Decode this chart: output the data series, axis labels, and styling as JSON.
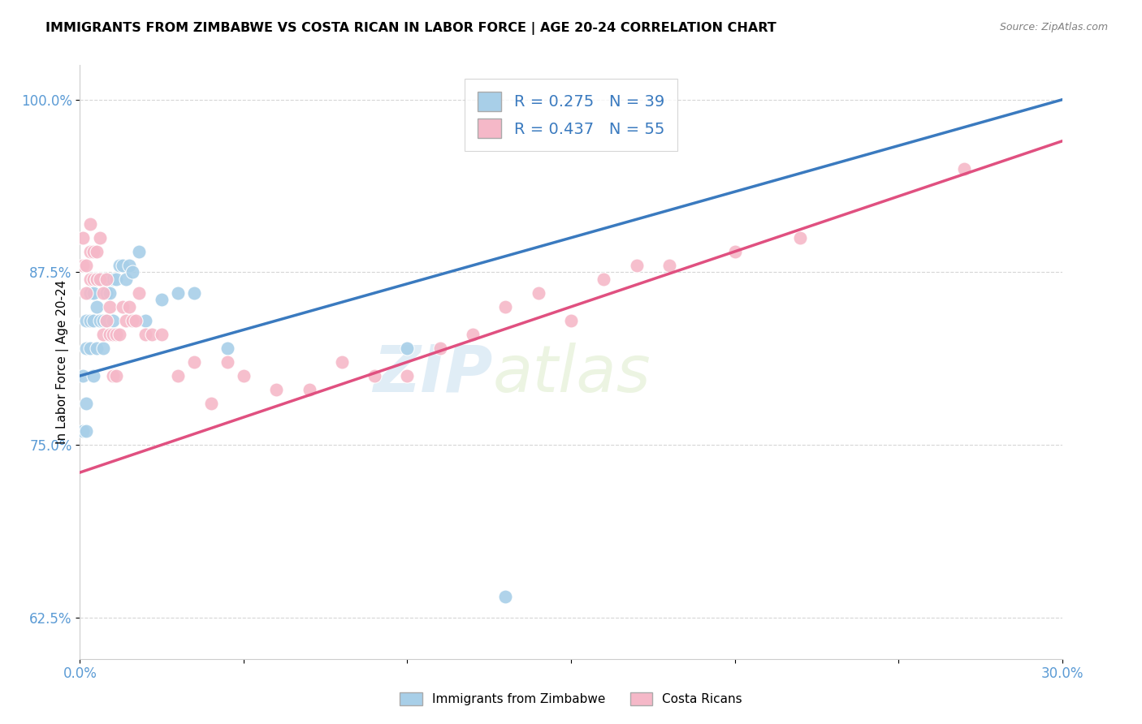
{
  "title": "IMMIGRANTS FROM ZIMBABWE VS COSTA RICAN IN LABOR FORCE | AGE 20-24 CORRELATION CHART",
  "source": "Source: ZipAtlas.com",
  "ylabel": "In Labor Force | Age 20-24",
  "xlim": [
    0.0,
    0.3
  ],
  "ylim": [
    0.595,
    1.025
  ],
  "xticks": [
    0.0,
    0.05,
    0.1,
    0.15,
    0.2,
    0.25,
    0.3
  ],
  "xticklabels": [
    "0.0%",
    "",
    "",
    "",
    "",
    "",
    "30.0%"
  ],
  "yticks": [
    0.625,
    0.75,
    0.875,
    1.0
  ],
  "yticklabels": [
    "62.5%",
    "75.0%",
    "87.5%",
    "100.0%"
  ],
  "legend_r1": "R = 0.275",
  "legend_n1": "N = 39",
  "legend_r2": "R = 0.437",
  "legend_n2": "N = 55",
  "blue_color": "#a8cfe8",
  "pink_color": "#f5b8c8",
  "blue_line_color": "#3a7abf",
  "pink_line_color": "#e05080",
  "axis_color": "#5b9bd5",
  "watermark_zip": "ZIP",
  "watermark_atlas": "atlas",
  "zimbabwe_x": [
    0.001,
    0.001,
    0.002,
    0.002,
    0.002,
    0.002,
    0.003,
    0.003,
    0.003,
    0.004,
    0.004,
    0.004,
    0.005,
    0.005,
    0.005,
    0.006,
    0.006,
    0.007,
    0.007,
    0.007,
    0.008,
    0.008,
    0.009,
    0.01,
    0.01,
    0.011,
    0.012,
    0.013,
    0.014,
    0.015,
    0.016,
    0.018,
    0.02,
    0.025,
    0.03,
    0.035,
    0.045,
    0.1,
    0.13
  ],
  "zimbabwe_y": [
    0.76,
    0.8,
    0.76,
    0.78,
    0.82,
    0.84,
    0.82,
    0.84,
    0.86,
    0.8,
    0.84,
    0.86,
    0.82,
    0.85,
    0.87,
    0.84,
    0.87,
    0.82,
    0.84,
    0.87,
    0.84,
    0.86,
    0.86,
    0.84,
    0.87,
    0.87,
    0.88,
    0.88,
    0.87,
    0.88,
    0.875,
    0.89,
    0.84,
    0.855,
    0.86,
    0.86,
    0.82,
    0.82,
    0.64
  ],
  "costarica_x": [
    0.001,
    0.001,
    0.002,
    0.002,
    0.003,
    0.003,
    0.003,
    0.004,
    0.004,
    0.005,
    0.005,
    0.005,
    0.006,
    0.006,
    0.007,
    0.007,
    0.008,
    0.008,
    0.009,
    0.009,
    0.01,
    0.01,
    0.011,
    0.011,
    0.012,
    0.013,
    0.014,
    0.015,
    0.016,
    0.017,
    0.018,
    0.02,
    0.022,
    0.025,
    0.03,
    0.035,
    0.04,
    0.045,
    0.05,
    0.06,
    0.07,
    0.08,
    0.09,
    0.1,
    0.11,
    0.12,
    0.13,
    0.14,
    0.15,
    0.16,
    0.17,
    0.18,
    0.2,
    0.22,
    0.27
  ],
  "costarica_y": [
    0.88,
    0.9,
    0.86,
    0.88,
    0.87,
    0.89,
    0.91,
    0.87,
    0.89,
    0.87,
    0.89,
    0.87,
    0.87,
    0.9,
    0.83,
    0.86,
    0.84,
    0.87,
    0.83,
    0.85,
    0.8,
    0.83,
    0.8,
    0.83,
    0.83,
    0.85,
    0.84,
    0.85,
    0.84,
    0.84,
    0.86,
    0.83,
    0.83,
    0.83,
    0.8,
    0.81,
    0.78,
    0.81,
    0.8,
    0.79,
    0.79,
    0.81,
    0.8,
    0.8,
    0.82,
    0.83,
    0.85,
    0.86,
    0.84,
    0.87,
    0.88,
    0.88,
    0.89,
    0.9,
    0.95
  ]
}
